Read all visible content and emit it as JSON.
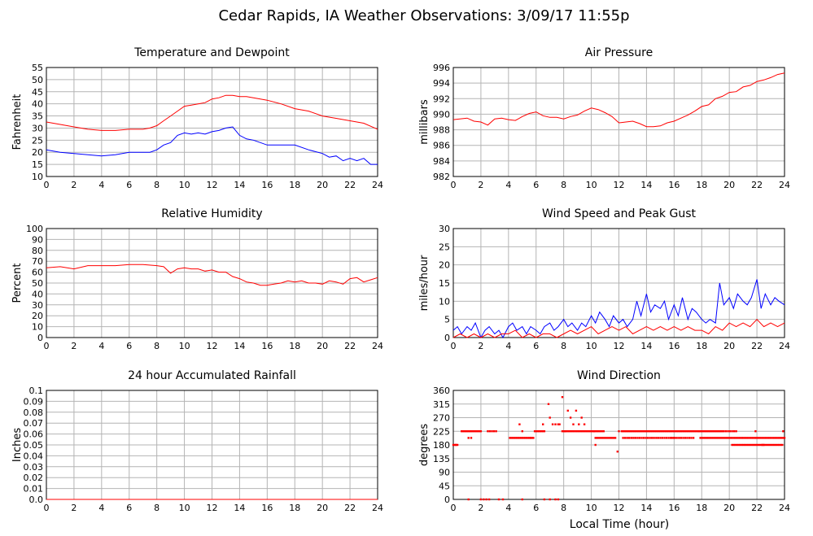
{
  "page_title": "Cedar Rapids, IA Weather Observations: 3/09/17 11:55p",
  "x_axis_label": "Local Time (hour)",
  "chart_data": [
    {
      "id": "temp",
      "type": "line",
      "title": "Temperature and Dewpoint",
      "ylabel": "Fahrenheit",
      "xlim": [
        0,
        24
      ],
      "ylim": [
        10,
        55
      ],
      "xticks": [
        0,
        2,
        4,
        6,
        8,
        10,
        12,
        14,
        16,
        18,
        20,
        22,
        24
      ],
      "yticks": [
        10,
        15,
        20,
        25,
        30,
        35,
        40,
        45,
        50,
        55
      ],
      "grid": true,
      "series": [
        {
          "color": "#ff0000",
          "x": [
            0,
            1,
            2,
            3,
            4,
            5,
            6,
            7,
            7.5,
            8,
            8.5,
            9,
            9.5,
            10,
            10.5,
            11,
            11.5,
            12,
            12.5,
            13,
            13.5,
            14,
            14.5,
            15,
            16,
            17,
            18,
            19,
            20,
            21,
            22,
            23,
            24
          ],
          "y": [
            32.5,
            31.5,
            30.5,
            29.5,
            29,
            29,
            29.5,
            29.5,
            30,
            31,
            33,
            35,
            37,
            39,
            39.5,
            40,
            40.5,
            42,
            42.5,
            43.5,
            43.5,
            43,
            43,
            42.5,
            41.5,
            40,
            38,
            37,
            35,
            34,
            33,
            32,
            29.5
          ]
        },
        {
          "color": "#0000ff",
          "x": [
            0,
            1,
            2,
            3,
            4,
            5,
            6,
            7,
            7.5,
            8,
            8.5,
            9,
            9.5,
            10,
            10.5,
            11,
            11.5,
            12,
            12.5,
            13,
            13.5,
            14,
            14.5,
            15,
            16,
            17,
            18,
            19,
            20,
            20.5,
            21,
            21.5,
            22,
            22.5,
            23,
            23.5,
            24
          ],
          "y": [
            21,
            20,
            19.5,
            19,
            18.5,
            19,
            20,
            20,
            20,
            21,
            23,
            24,
            27,
            28,
            27.5,
            28,
            27.5,
            28.5,
            29,
            30,
            30.5,
            27,
            25.5,
            25,
            23,
            23,
            23,
            21,
            19.5,
            18,
            18.5,
            16.5,
            17.5,
            16.5,
            17.5,
            15,
            15
          ]
        }
      ]
    },
    {
      "id": "pressure",
      "type": "line",
      "title": "Air Pressure",
      "ylabel": "millibars",
      "xlim": [
        0,
        24
      ],
      "ylim": [
        982,
        996
      ],
      "xticks": [
        0,
        2,
        4,
        6,
        8,
        10,
        12,
        14,
        16,
        18,
        20,
        22,
        24
      ],
      "yticks": [
        982,
        984,
        986,
        988,
        990,
        992,
        994,
        996
      ],
      "grid": true,
      "series": [
        {
          "color": "#ff0000",
          "x": [
            0,
            1,
            1.5,
            2,
            2.5,
            3,
            3.5,
            4,
            4.5,
            5,
            5.5,
            6,
            6.5,
            7,
            7.5,
            8,
            8.5,
            9,
            9.5,
            10,
            10.5,
            11,
            11.5,
            12,
            12.5,
            13,
            13.5,
            14,
            14.5,
            15,
            15.5,
            16,
            16.5,
            17,
            17.5,
            18,
            18.5,
            19,
            19.5,
            20,
            20.5,
            21,
            21.5,
            22,
            22.5,
            23,
            23.5,
            24
          ],
          "y": [
            989.3,
            989.5,
            989.1,
            989.0,
            988.6,
            989.4,
            989.5,
            989.3,
            989.2,
            989.7,
            990.1,
            990.3,
            989.8,
            989.6,
            989.6,
            989.4,
            989.7,
            989.9,
            990.4,
            990.8,
            990.6,
            990.2,
            989.7,
            988.9,
            989.0,
            989.1,
            988.8,
            988.4,
            988.4,
            988.5,
            988.9,
            989.1,
            989.5,
            989.9,
            990.4,
            991.0,
            991.2,
            992.0,
            992.3,
            992.8,
            992.9,
            993.5,
            993.7,
            994.2,
            994.4,
            994.7,
            995.1,
            995.3
          ]
        }
      ]
    },
    {
      "id": "humidity",
      "type": "line",
      "title": "Relative Humidity",
      "ylabel": "Percent",
      "xlim": [
        0,
        24
      ],
      "ylim": [
        0,
        100
      ],
      "xticks": [
        0,
        2,
        4,
        6,
        8,
        10,
        12,
        14,
        16,
        18,
        20,
        22,
        24
      ],
      "yticks": [
        0,
        10,
        20,
        30,
        40,
        50,
        60,
        70,
        80,
        90,
        100
      ],
      "grid": true,
      "series": [
        {
          "color": "#ff0000",
          "x": [
            0,
            1,
            2,
            3,
            4,
            5,
            6,
            7,
            8,
            8.5,
            9,
            9.5,
            10,
            10.5,
            11,
            11.5,
            12,
            12.5,
            13,
            13.5,
            14,
            14.5,
            15,
            15.5,
            16,
            16.5,
            17,
            17.5,
            18,
            18.5,
            19,
            19.5,
            20,
            20.5,
            21,
            21.5,
            22,
            22.5,
            23,
            23.5,
            24
          ],
          "y": [
            64,
            65,
            63,
            66,
            66,
            66,
            67,
            67,
            66,
            65,
            59,
            63,
            64,
            63,
            63,
            61,
            62,
            60,
            60,
            56,
            54,
            51,
            50,
            48,
            48,
            49,
            50,
            52,
            51,
            52,
            50,
            50,
            49,
            52,
            51,
            49,
            54,
            55,
            51,
            53,
            55
          ]
        }
      ]
    },
    {
      "id": "wind",
      "type": "line",
      "title": "Wind Speed and Peak Gust",
      "ylabel": "miles/hour",
      "xlim": [
        0,
        24
      ],
      "ylim": [
        0,
        30
      ],
      "xticks": [
        0,
        2,
        4,
        6,
        8,
        10,
        12,
        14,
        16,
        18,
        20,
        22,
        24
      ],
      "yticks": [
        0,
        5,
        10,
        15,
        20,
        25,
        30
      ],
      "grid": true,
      "series": [
        {
          "color": "#0000ff",
          "x": [
            0,
            0.3,
            0.6,
            1,
            1.3,
            1.6,
            2,
            2.3,
            2.6,
            3,
            3.3,
            3.6,
            4,
            4.3,
            4.6,
            5,
            5.3,
            5.6,
            6,
            6.3,
            6.6,
            7,
            7.3,
            7.6,
            8,
            8.3,
            8.6,
            9,
            9.3,
            9.6,
            10,
            10.3,
            10.6,
            11,
            11.3,
            11.6,
            12,
            12.3,
            12.6,
            13,
            13.3,
            13.6,
            14,
            14.3,
            14.6,
            15,
            15.3,
            15.6,
            16,
            16.3,
            16.6,
            17,
            17.3,
            17.6,
            18,
            18.3,
            18.6,
            19,
            19.3,
            19.6,
            20,
            20.3,
            20.6,
            21,
            21.3,
            21.6,
            22,
            22.3,
            22.6,
            23,
            23.3,
            23.6,
            24
          ],
          "y": [
            2,
            3,
            1,
            3,
            2,
            4,
            0,
            2,
            3,
            1,
            2,
            0,
            3,
            4,
            2,
            3,
            1,
            3,
            2,
            1,
            3,
            4,
            2,
            3,
            5,
            3,
            4,
            2,
            4,
            3,
            6,
            4,
            7,
            5,
            3,
            6,
            4,
            5,
            3,
            5,
            10,
            6,
            12,
            7,
            9,
            8,
            10,
            5,
            9,
            6,
            11,
            5,
            8,
            7,
            5,
            4,
            5,
            4,
            15,
            9,
            11,
            8,
            12,
            10,
            9,
            11,
            16,
            8,
            12,
            9,
            11,
            10,
            9
          ]
        },
        {
          "color": "#ff0000",
          "x": [
            0,
            0.5,
            1,
            1.5,
            2,
            2.5,
            3,
            3.5,
            4,
            4.5,
            5,
            5.5,
            6,
            6.5,
            7,
            7.5,
            8,
            8.5,
            9,
            9.5,
            10,
            10.5,
            11,
            11.5,
            12,
            12.5,
            13,
            13.5,
            14,
            14.5,
            15,
            15.5,
            16,
            16.5,
            17,
            17.5,
            18,
            18.5,
            19,
            19.5,
            20,
            20.5,
            21,
            21.5,
            22,
            22.5,
            23,
            23.5,
            24
          ],
          "y": [
            0,
            1,
            0,
            1,
            0,
            1,
            0,
            1,
            1,
            2,
            0,
            1,
            0,
            1,
            1,
            0,
            1,
            2,
            1,
            2,
            3,
            1,
            2,
            3,
            2,
            3,
            1,
            2,
            3,
            2,
            3,
            2,
            3,
            2,
            3,
            2,
            2,
            1,
            3,
            2,
            4,
            3,
            4,
            3,
            5,
            3,
            4,
            3,
            4
          ]
        }
      ]
    },
    {
      "id": "rain",
      "type": "line",
      "title": "24 hour Accumulated Rainfall",
      "ylabel": "Inches",
      "xlim": [
        0,
        24
      ],
      "ylim": [
        0,
        0.1
      ],
      "xticks": [
        0,
        2,
        4,
        6,
        8,
        10,
        12,
        14,
        16,
        18,
        20,
        22,
        24
      ],
      "yticks": [
        "0.0",
        "0.01",
        "0.02",
        "0.03",
        "0.04",
        "0.05",
        "0.06",
        "0.07",
        "0.08",
        "0.09",
        "0.1"
      ],
      "grid": true,
      "series": [
        {
          "color": "#ff0000",
          "x": [
            0,
            24
          ],
          "y": [
            0,
            0
          ]
        }
      ]
    },
    {
      "id": "winddir",
      "type": "scatter",
      "title": "Wind Direction",
      "ylabel": "degrees",
      "xlim": [
        0,
        24
      ],
      "ylim": [
        0,
        360
      ],
      "xticks": [
        0,
        2,
        4,
        6,
        8,
        10,
        12,
        14,
        16,
        18,
        20,
        22,
        24
      ],
      "yticks": [
        0,
        45,
        90,
        135,
        180,
        225,
        270,
        315,
        360
      ],
      "grid": true,
      "segments": [
        {
          "from": 0,
          "to": 0.3,
          "step": 0.1,
          "y": 180
        },
        {
          "from": 0.6,
          "to": 2.0,
          "step": 0.1,
          "y": 225
        },
        {
          "from": 2.5,
          "to": 3.2,
          "step": 0.15,
          "y": 225
        },
        {
          "from": 4.1,
          "to": 5.8,
          "step": 0.1,
          "y": 203
        },
        {
          "from": 5.9,
          "to": 6.6,
          "step": 0.1,
          "y": 225
        },
        {
          "from": 7.9,
          "to": 11.0,
          "step": 0.12,
          "y": 225
        },
        {
          "from": 10.3,
          "to": 11.8,
          "step": 0.12,
          "y": 203
        },
        {
          "from": 12.2,
          "to": 17.8,
          "step": 0.1,
          "y": 225
        },
        {
          "from": 12.3,
          "to": 17.5,
          "step": 0.15,
          "y": 203
        },
        {
          "from": 17.8,
          "to": 19.5,
          "step": 0.1,
          "y": 225
        },
        {
          "from": 17.9,
          "to": 21.0,
          "step": 0.12,
          "y": 203
        },
        {
          "from": 19.6,
          "to": 20.5,
          "step": 0.15,
          "y": 225
        },
        {
          "from": 20.2,
          "to": 22.5,
          "step": 0.12,
          "y": 180
        },
        {
          "from": 21.0,
          "to": 24.0,
          "step": 0.12,
          "y": 203
        },
        {
          "from": 22.4,
          "to": 23.9,
          "step": 0.12,
          "y": 180
        }
      ],
      "points": [
        [
          1.1,
          0
        ],
        [
          2.0,
          0
        ],
        [
          2.2,
          0
        ],
        [
          2.4,
          0
        ],
        [
          2.6,
          0
        ],
        [
          3.3,
          0
        ],
        [
          3.6,
          0
        ],
        [
          5.0,
          0
        ],
        [
          6.6,
          0
        ],
        [
          7.0,
          0
        ],
        [
          7.4,
          0
        ],
        [
          7.6,
          0
        ],
        [
          0.2,
          180
        ],
        [
          1.1,
          203
        ],
        [
          1.3,
          203
        ],
        [
          4.8,
          248
        ],
        [
          5.0,
          225
        ],
        [
          5.6,
          203
        ],
        [
          6.5,
          248
        ],
        [
          6.9,
          315
        ],
        [
          7.0,
          270
        ],
        [
          7.2,
          248
        ],
        [
          7.4,
          248
        ],
        [
          7.6,
          248
        ],
        [
          7.7,
          248
        ],
        [
          7.9,
          338
        ],
        [
          8.1,
          225
        ],
        [
          8.3,
          293
        ],
        [
          8.5,
          270
        ],
        [
          8.7,
          248
        ],
        [
          8.9,
          293
        ],
        [
          9.1,
          248
        ],
        [
          9.3,
          270
        ],
        [
          9.5,
          248
        ],
        [
          10.2,
          225
        ],
        [
          10.3,
          180
        ],
        [
          11.9,
          158
        ],
        [
          12.0,
          225
        ],
        [
          15.8,
          203
        ],
        [
          16.0,
          203
        ],
        [
          21.9,
          225
        ],
        [
          23.9,
          225
        ]
      ]
    }
  ]
}
